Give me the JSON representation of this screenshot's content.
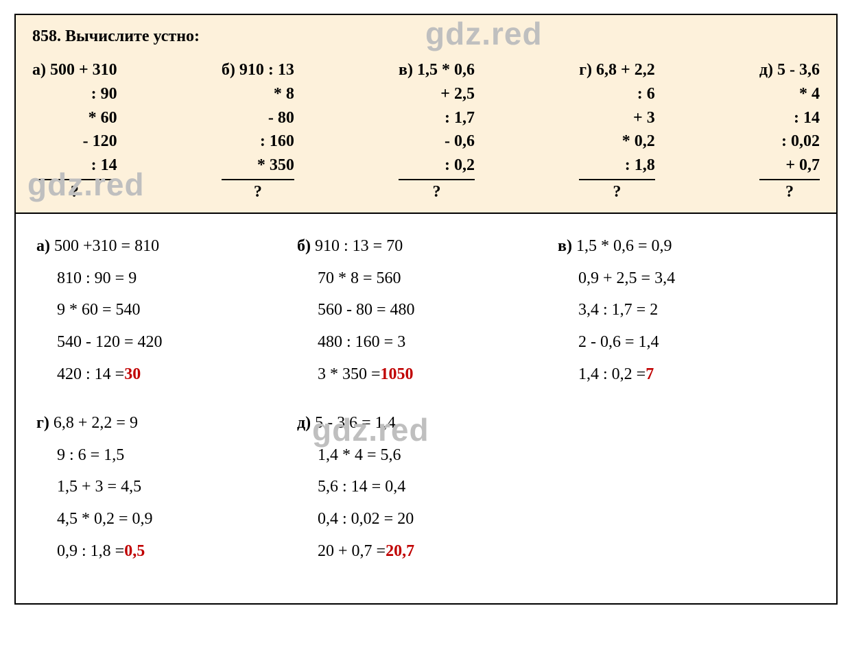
{
  "colors": {
    "problem_bg": "#fdf1db",
    "solution_bg": "#ffffff",
    "border": "#000000",
    "text": "#000000",
    "answer": "#c00000",
    "watermark": "#bfbfbf"
  },
  "fonts": {
    "family": "Times New Roman",
    "title_size": 24,
    "body_size": 24,
    "watermark_size": 46
  },
  "watermark_text": "gdz.red",
  "problem": {
    "number": "858.",
    "title": "Вычислите устно:",
    "columns": [
      {
        "label": "а)",
        "first": "500 + 310",
        "ops": [
          ": 90",
          "* 60",
          "- 120",
          ": 14"
        ],
        "q": "?"
      },
      {
        "label": "б)",
        "first": "910 : 13",
        "ops": [
          "* 8",
          "- 80",
          ": 160",
          "* 350"
        ],
        "q": "?"
      },
      {
        "label": "в)",
        "first": "1,5 * 0,6",
        "ops": [
          "+ 2,5",
          ": 1,7",
          "- 0,6",
          ": 0,2"
        ],
        "q": "?"
      },
      {
        "label": "г)",
        "first": "6,8 + 2,2",
        "ops": [
          ": 6",
          "+ 3",
          "* 0,2",
          ": 1,8"
        ],
        "q": "?"
      },
      {
        "label": "д)",
        "first": "5 - 3,6",
        "ops": [
          "* 4",
          ": 14",
          ": 0,02",
          "+ 0,7"
        ],
        "q": "?"
      }
    ]
  },
  "solutions": {
    "row1": [
      {
        "label": "а)",
        "first": "500 +310 = 810",
        "lines": [
          "810 : 90 = 9",
          "9 * 60 = 540",
          "540 - 120 = 420"
        ],
        "final_prefix": "420 : 14 = ",
        "final_answer": "30"
      },
      {
        "label": "б)",
        "first": "910 : 13 = 70",
        "lines": [
          "70 * 8 = 560",
          "560 - 80 = 480",
          "480 : 160 = 3"
        ],
        "final_prefix": "3 * 350 = ",
        "final_answer": "1050"
      },
      {
        "label": "в)",
        "first": "1,5 * 0,6 = 0,9",
        "lines": [
          "0,9 + 2,5 = 3,4",
          "3,4 : 1,7 = 2",
          "2 - 0,6 = 1,4"
        ],
        "final_prefix": "1,4 : 0,2 = ",
        "final_answer": "7"
      }
    ],
    "row2": [
      {
        "label": "г)",
        "first": "6,8 + 2,2 = 9",
        "lines": [
          "9 : 6 = 1,5",
          "1,5 + 3 = 4,5",
          "4,5 * 0,2 = 0,9"
        ],
        "final_prefix": "0,9 : 1,8 = ",
        "final_answer": "0,5"
      },
      {
        "label": "д)",
        "first": "5 - 3,6 = 1,4",
        "lines": [
          "1,4 * 4 = 5,6",
          "5,6 : 14 = 0,4",
          "0,4 : 0,02 = 20"
        ],
        "final_prefix": "20 + 0,7 = ",
        "final_answer": "20,7"
      }
    ]
  }
}
